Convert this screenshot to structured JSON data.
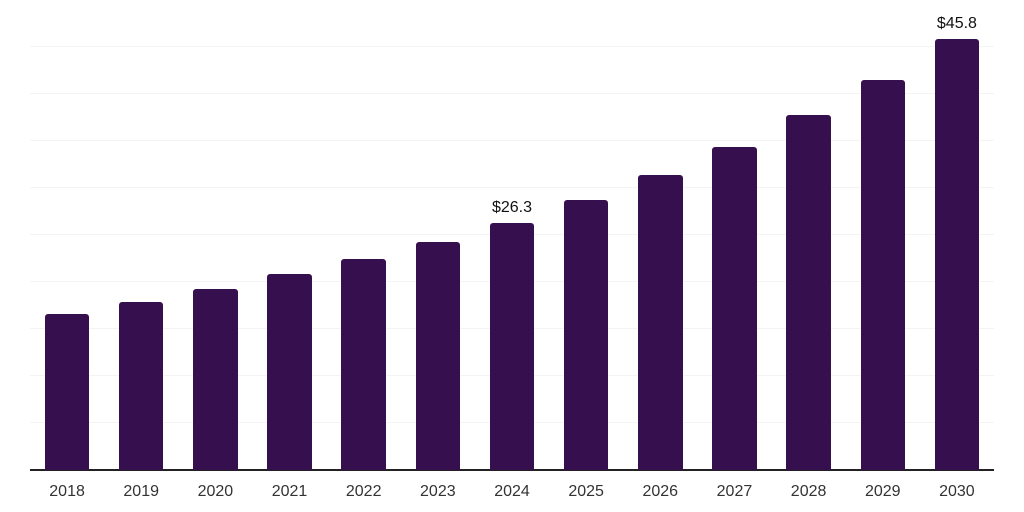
{
  "chart_data": {
    "type": "bar",
    "title": "",
    "categories": [
      "2018",
      "2019",
      "2020",
      "2021",
      "2022",
      "2023",
      "2024",
      "2025",
      "2026",
      "2027",
      "2028",
      "2029",
      "2030"
    ],
    "values": [
      16.6,
      17.9,
      19.3,
      20.8,
      22.4,
      24.3,
      26.3,
      28.7,
      31.4,
      34.4,
      37.8,
      41.5,
      45.8
    ],
    "labeled_points": [
      {
        "category": "2024",
        "label": "$26.3"
      },
      {
        "category": "2030",
        "label": "$45.8"
      }
    ],
    "xlabel": "",
    "ylabel": "",
    "ylim": [
      0,
      50
    ],
    "gridline_step": 5,
    "grid": "horizontal",
    "y_tick_labels_visible": false,
    "legend": "none",
    "bar_width_fraction_of_slot": 0.6,
    "colors": {
      "bar": "#36104E",
      "axis_line": "#222222",
      "gridline": "#F4F4F4",
      "x_tick_label": "#333333",
      "data_label": "#111111",
      "background": "#FFFFFF"
    }
  }
}
